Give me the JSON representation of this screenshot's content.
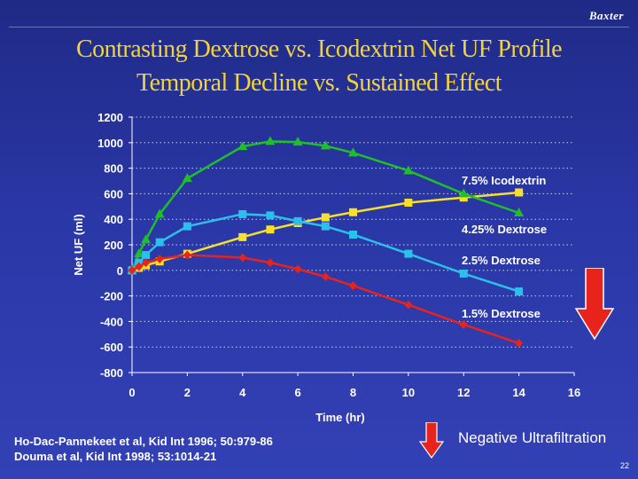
{
  "brand": "Baxter",
  "title_line1": "Contrasting Dextrose vs. Icodextrin Net UF Profile",
  "title_line2": "Temporal Decline vs. Sustained Effect",
  "references": [
    "Ho-Dac-Pannekeet et al, Kid Int 1996; 50:979-86",
    "Douma et al, Kid Int 1998; 53:1014-21"
  ],
  "negative_label": "Negative Ultrafiltration",
  "page_number": "22",
  "colors": {
    "title": "#f2d43a",
    "arrow": "#e8231b",
    "green": "#1fbf2a",
    "cyan": "#2bc0ea",
    "yellow": "#f7e02a",
    "red": "#e8231b"
  },
  "chart_data": {
    "type": "line",
    "xlabel": "Time (hr)",
    "ylabel": "Net UF (ml)",
    "xlim": [
      0,
      16
    ],
    "ylim": [
      -800,
      1200
    ],
    "x_ticks": [
      0,
      2,
      4,
      6,
      8,
      10,
      12,
      14,
      16
    ],
    "y_ticks": [
      1200,
      1000,
      800,
      600,
      400,
      200,
      0,
      -200,
      -400,
      -600,
      -800
    ],
    "grid": "horizontal-dotted",
    "series": [
      {
        "name": "7.5% Icodextrin",
        "color": "#f7e02a",
        "marker": "square",
        "points": [
          [
            0,
            0
          ],
          [
            0.25,
            20
          ],
          [
            0.5,
            40
          ],
          [
            1,
            70
          ],
          [
            2,
            130
          ],
          [
            4,
            260
          ],
          [
            5,
            320
          ],
          [
            6,
            370
          ],
          [
            7,
            415
          ],
          [
            8,
            455
          ],
          [
            10,
            530
          ],
          [
            12,
            570
          ],
          [
            14,
            610
          ]
        ]
      },
      {
        "name": "4.25% Dextrose",
        "color": "#1fbf2a",
        "marker": "triangle",
        "points": [
          [
            0,
            0
          ],
          [
            0.25,
            130
          ],
          [
            0.5,
            240
          ],
          [
            1,
            440
          ],
          [
            2,
            720
          ],
          [
            4,
            970
          ],
          [
            5,
            1010
          ],
          [
            6,
            1005
          ],
          [
            7,
            975
          ],
          [
            8,
            920
          ],
          [
            10,
            780
          ],
          [
            12,
            600
          ],
          [
            14,
            450
          ]
        ]
      },
      {
        "name": "2.5% Dextrose",
        "color": "#2bc0ea",
        "marker": "square",
        "points": [
          [
            0,
            0
          ],
          [
            0.25,
            60
          ],
          [
            0.5,
            120
          ],
          [
            1,
            220
          ],
          [
            2,
            345
          ],
          [
            4,
            440
          ],
          [
            5,
            430
          ],
          [
            6,
            385
          ],
          [
            7,
            345
          ],
          [
            8,
            280
          ],
          [
            10,
            130
          ],
          [
            12,
            -25
          ],
          [
            14,
            -165
          ]
        ]
      },
      {
        "name": "1.5% Dextrose",
        "color": "#e8231b",
        "marker": "diamond",
        "points": [
          [
            0,
            0
          ],
          [
            0.25,
            30
          ],
          [
            0.5,
            60
          ],
          [
            1,
            90
          ],
          [
            2,
            120
          ],
          [
            4,
            100
          ],
          [
            5,
            60
          ],
          [
            6,
            10
          ],
          [
            7,
            -50
          ],
          [
            8,
            -120
          ],
          [
            10,
            -270
          ],
          [
            12,
            -425
          ],
          [
            14,
            -570
          ]
        ]
      }
    ]
  }
}
